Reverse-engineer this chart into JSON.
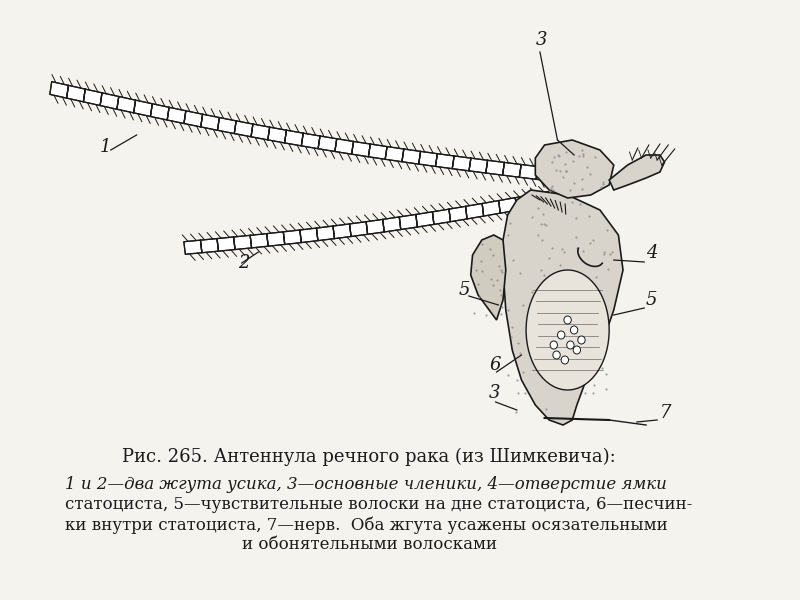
{
  "title": "Рис. 265. Антеннула речного рака (из Шимкевича):",
  "caption_line1": "1 и 2—два жгута усика, 3—основные членики, 4—отверстие ямки",
  "caption_line2": "статоциста, 5—чувствительные волоски на дне статоциста, 6—песчин-",
  "caption_line3": "ки внутри статоциста, 7—нерв.  Оба жгута усажены осязательными",
  "caption_line4": "и обонятельными волосками",
  "bg_color": "#f5f3ee",
  "line_color": "#1a1a1a",
  "label_color": "#1a1a1a",
  "title_fontsize": 13,
  "caption_fontsize": 12,
  "label_fontsize": 13
}
